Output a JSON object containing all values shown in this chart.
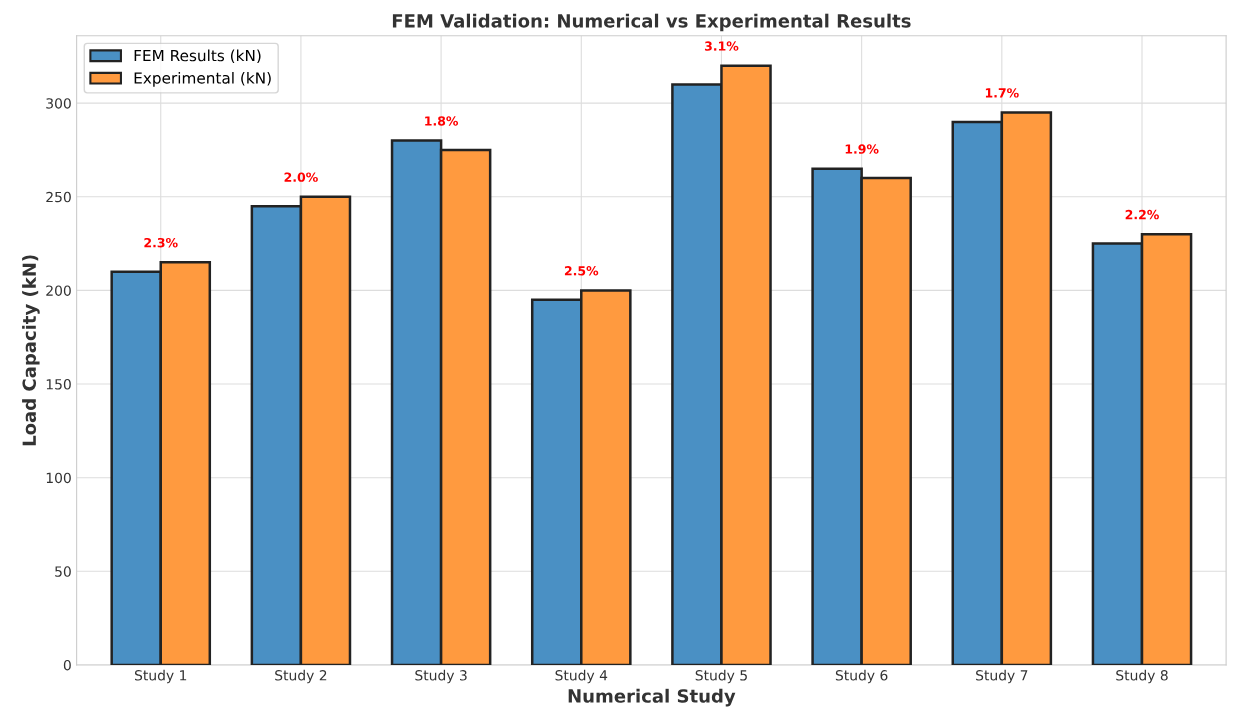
{
  "chart_data": {
    "type": "bar",
    "title": "FEM Validation: Numerical vs Experimental Results",
    "xlabel": "Numerical Study",
    "ylabel": "Load Capacity (kN)",
    "categories": [
      "Study 1",
      "Study 2",
      "Study 3",
      "Study 4",
      "Study 5",
      "Study 6",
      "Study 7",
      "Study 8"
    ],
    "series": [
      {
        "name": "FEM Results (kN)",
        "color": "#4a90c4",
        "values": [
          210,
          245,
          280,
          195,
          310,
          265,
          290,
          225
        ]
      },
      {
        "name": "Experimental (kN)",
        "color": "#ff9a3f",
        "values": [
          215,
          250,
          275,
          200,
          320,
          260,
          295,
          230
        ]
      }
    ],
    "annotations": [
      {
        "text": "2.3%",
        "x": "Study 1",
        "y": 215
      },
      {
        "text": "2.0%",
        "x": "Study 2",
        "y": 250
      },
      {
        "text": "1.8%",
        "x": "Study 3",
        "y": 280
      },
      {
        "text": "2.5%",
        "x": "Study 4",
        "y": 200
      },
      {
        "text": "3.1%",
        "x": "Study 5",
        "y": 320
      },
      {
        "text": "1.9%",
        "x": "Study 6",
        "y": 265
      },
      {
        "text": "1.7%",
        "x": "Study 7",
        "y": 295
      },
      {
        "text": "2.2%",
        "x": "Study 8",
        "y": 230
      }
    ],
    "ylim": [
      0,
      336
    ],
    "yticks": [
      0,
      50,
      100,
      150,
      200,
      250,
      300
    ],
    "grid": true,
    "legend": "top left"
  }
}
